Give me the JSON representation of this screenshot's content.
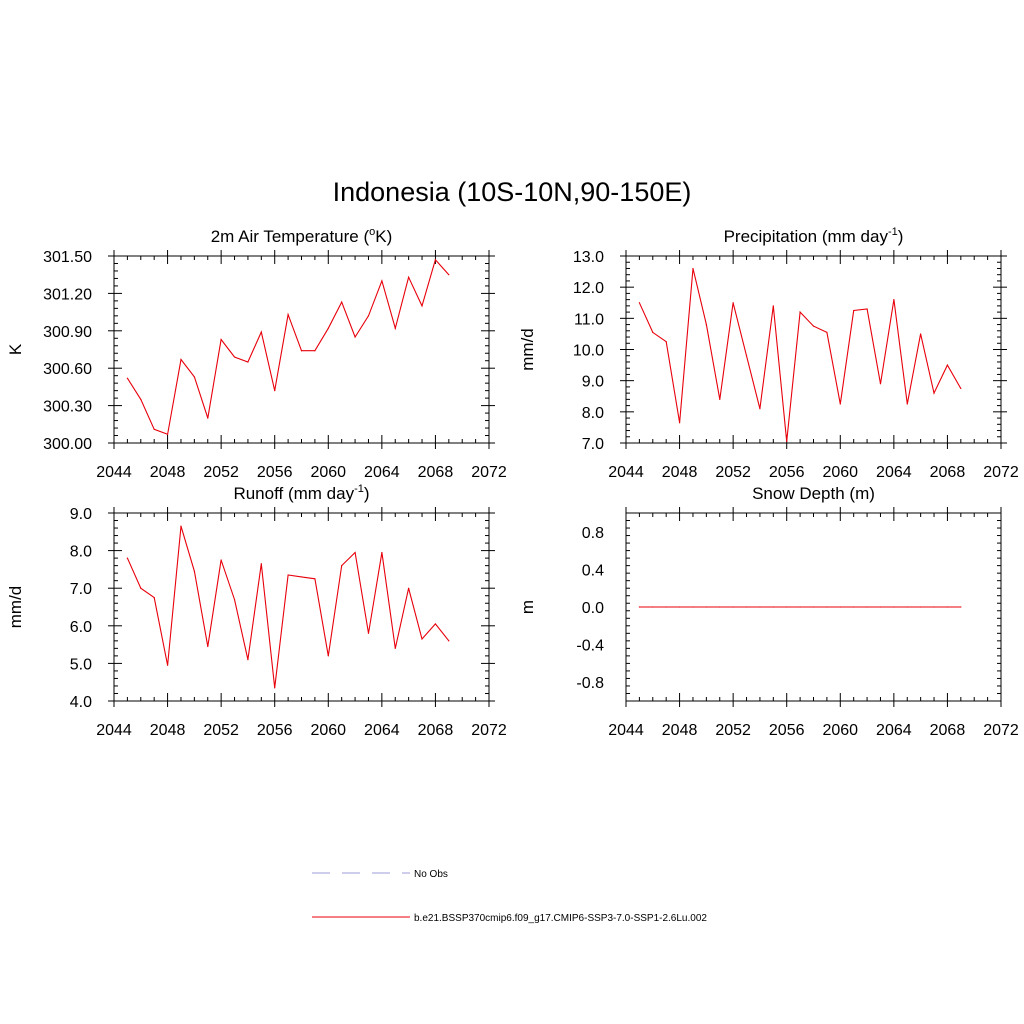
{
  "title": "Indonesia (10S-10N,90-150E)",
  "colors": {
    "model_line": "#e8000b",
    "obs_line": "#b0b0e0",
    "axis": "#000000"
  },
  "legend": [
    {
      "label": "No Obs",
      "style": "dashed",
      "color": "#b0b0e0"
    },
    {
      "label": "b.e21.BSSP370cmip6.f09_g17.CMIP6-SSP3-7.0-SSP1-2.6Lu.002",
      "style": "solid",
      "color": "#e8000b"
    }
  ],
  "chart_data": [
    {
      "type": "line",
      "title": "2m Air Temperature (",
      "title_sup": "o",
      "title_post": "K)",
      "ylabel": "K",
      "xlim": [
        2044,
        2072
      ],
      "ylim": [
        300.0,
        301.5
      ],
      "xticks": [
        2044,
        2048,
        2052,
        2056,
        2060,
        2064,
        2068,
        2072
      ],
      "yticks": [
        "300.00",
        "300.30",
        "300.60",
        "300.90",
        "301.20",
        "301.50"
      ],
      "x": [
        2045,
        2046,
        2047,
        2048,
        2049,
        2050,
        2051,
        2052,
        2053,
        2054,
        2055,
        2056,
        2057,
        2058,
        2059,
        2060,
        2061,
        2062,
        2063,
        2064,
        2065,
        2066,
        2067,
        2068,
        2069
      ],
      "series": [
        {
          "values": [
            300.52,
            300.35,
            300.11,
            300.07,
            300.67,
            300.53,
            300.2,
            300.83,
            300.69,
            300.65,
            300.89,
            300.42,
            301.03,
            300.74,
            300.74,
            300.92,
            301.13,
            300.85,
            301.02,
            301.3,
            300.92,
            301.33,
            301.1,
            301.47,
            301.35
          ]
        }
      ]
    },
    {
      "type": "line",
      "title": "Precipitation (mm day",
      "title_sup": "-1",
      "title_post": ")",
      "ylabel": "mm/d",
      "xlim": [
        2044,
        2072
      ],
      "ylim": [
        7.0,
        13.0
      ],
      "xticks": [
        2044,
        2048,
        2052,
        2056,
        2060,
        2064,
        2068,
        2072
      ],
      "yticks": [
        "7.0",
        "8.0",
        "9.0",
        "10.0",
        "11.0",
        "12.0",
        "13.0"
      ],
      "x": [
        2045,
        2046,
        2047,
        2048,
        2049,
        2050,
        2051,
        2052,
        2053,
        2054,
        2055,
        2056,
        2057,
        2058,
        2059,
        2060,
        2061,
        2062,
        2063,
        2064,
        2065,
        2066,
        2067,
        2068,
        2069
      ],
      "series": [
        {
          "values": [
            11.5,
            10.55,
            10.25,
            7.65,
            12.6,
            10.8,
            8.4,
            11.5,
            9.8,
            8.1,
            11.4,
            7.05,
            11.2,
            10.75,
            10.55,
            8.25,
            11.25,
            11.3,
            8.9,
            11.6,
            8.25,
            10.5,
            8.6,
            9.5,
            8.75
          ]
        }
      ]
    },
    {
      "type": "line",
      "title": "Runoff (mm day",
      "title_sup": "-1",
      "title_post": ")",
      "ylabel": "mm/d",
      "xlim": [
        2044,
        2072
      ],
      "ylim": [
        4.0,
        9.0
      ],
      "xticks": [
        2044,
        2048,
        2052,
        2056,
        2060,
        2064,
        2068,
        2072
      ],
      "yticks": [
        "4.0",
        "5.0",
        "6.0",
        "7.0",
        "8.0",
        "9.0"
      ],
      "x": [
        2045,
        2046,
        2047,
        2048,
        2049,
        2050,
        2051,
        2052,
        2053,
        2054,
        2055,
        2056,
        2057,
        2058,
        2059,
        2060,
        2061,
        2062,
        2063,
        2064,
        2065,
        2066,
        2067,
        2068,
        2069
      ],
      "series": [
        {
          "values": [
            7.8,
            7.0,
            6.75,
            4.95,
            8.65,
            7.45,
            5.45,
            7.75,
            6.7,
            5.1,
            7.65,
            4.35,
            7.35,
            7.3,
            7.25,
            5.2,
            7.6,
            7.95,
            5.8,
            7.95,
            5.4,
            7.0,
            5.65,
            6.05,
            5.6
          ]
        }
      ]
    },
    {
      "type": "line",
      "title": "Snow Depth (m)",
      "title_sup": "",
      "title_post": "",
      "ylabel": "m",
      "xlim": [
        2044,
        2072
      ],
      "ylim": [
        -1.0,
        1.0
      ],
      "xticks": [
        2044,
        2048,
        2052,
        2056,
        2060,
        2064,
        2068,
        2072
      ],
      "yticks": [
        "-0.8",
        "-0.4",
        "0.0",
        "0.4",
        "0.8"
      ],
      "x": [
        2045,
        2046,
        2047,
        2048,
        2049,
        2050,
        2051,
        2052,
        2053,
        2054,
        2055,
        2056,
        2057,
        2058,
        2059,
        2060,
        2061,
        2062,
        2063,
        2064,
        2065,
        2066,
        2067,
        2068,
        2069
      ],
      "series": [
        {
          "values": [
            0,
            0,
            0,
            0,
            0,
            0,
            0,
            0,
            0,
            0,
            0,
            0,
            0,
            0,
            0,
            0,
            0,
            0,
            0,
            0,
            0,
            0,
            0,
            0,
            0
          ]
        }
      ]
    }
  ]
}
